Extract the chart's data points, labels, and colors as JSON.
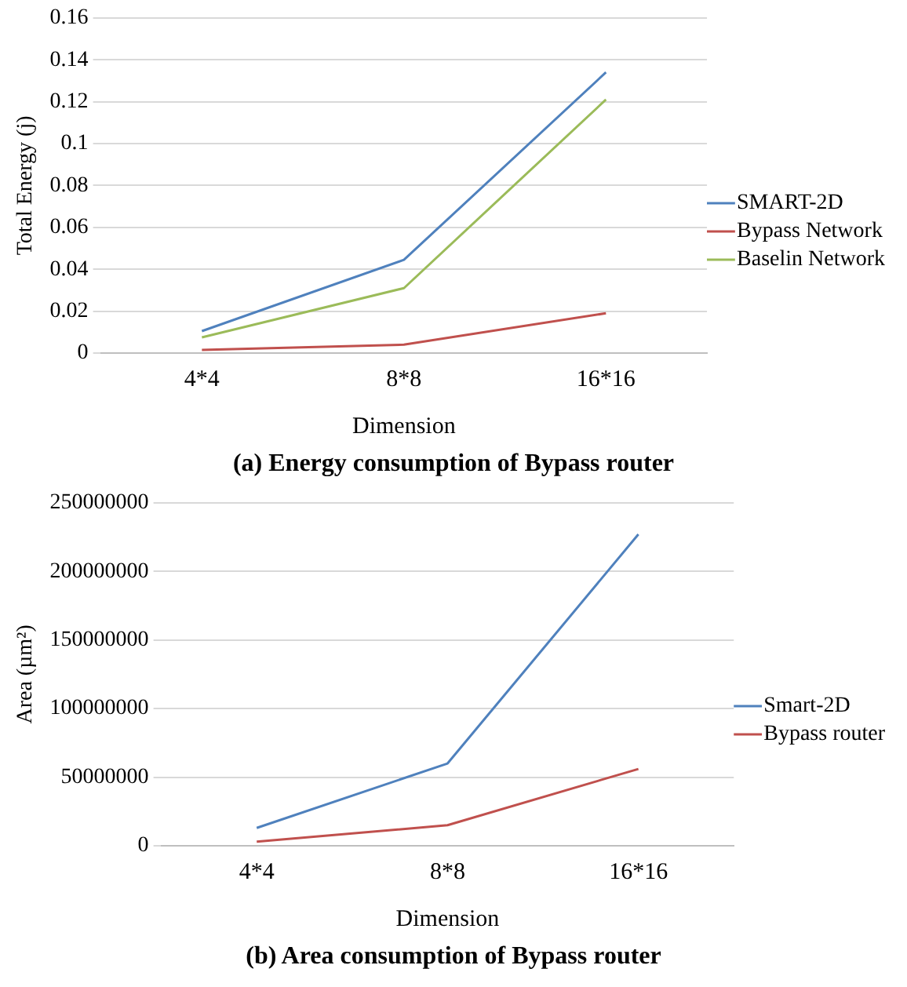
{
  "chart_data": [
    {
      "type": "line",
      "title": "(a) Energy consumption of Bypass router",
      "xlabel": "Dimension",
      "ylabel": "Total Energy (j)",
      "categories": [
        "4*4",
        "8*8",
        "16*16"
      ],
      "series": [
        {
          "name": "SMART-2D",
          "color": "#4f81bd",
          "values": [
            0.0105,
            0.0445,
            0.134
          ]
        },
        {
          "name": "Bypass Network",
          "color": "#c0504d",
          "values": [
            0.0015,
            0.004,
            0.019
          ]
        },
        {
          "name": "Baselin Network",
          "color": "#9bbb59",
          "values": [
            0.0075,
            0.031,
            0.121
          ]
        }
      ],
      "ylim": [
        0,
        0.16
      ],
      "yticks": [
        0,
        0.02,
        0.04,
        0.06,
        0.08,
        0.1,
        0.12,
        0.14,
        0.16
      ],
      "grid": "y",
      "legend": "right",
      "marker": "none",
      "line_style": "solid"
    },
    {
      "type": "line",
      "title": "(b) Area consumption of Bypass router",
      "xlabel": "Dimension",
      "ylabel": "Area (µm²)",
      "categories": [
        "4*4",
        "8*8",
        "16*16"
      ],
      "series": [
        {
          "name": "Smart-2D",
          "color": "#4f81bd",
          "values": [
            13000000,
            60000000,
            227000000
          ]
        },
        {
          "name": "Bypass router",
          "color": "#c0504d",
          "values": [
            3000000,
            15000000,
            56000000
          ]
        }
      ],
      "ylim": [
        0,
        250000000
      ],
      "yticks": [
        0,
        50000000,
        100000000,
        150000000,
        200000000,
        250000000
      ],
      "grid": "y",
      "legend": "right",
      "marker": "none",
      "line_style": "solid"
    }
  ]
}
